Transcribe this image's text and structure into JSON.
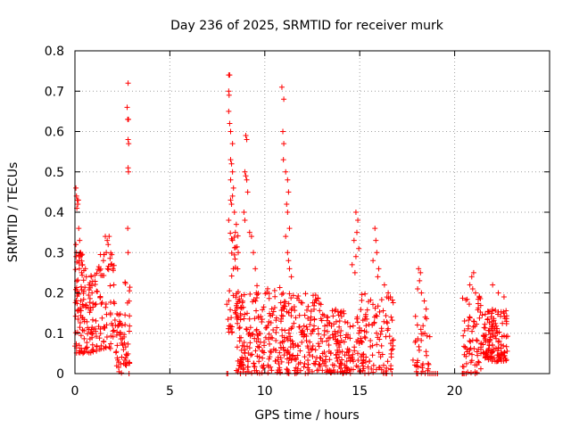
{
  "chart_data": {
    "type": "scatter",
    "title": "Day 236 of 2025, SRMTID for receiver murk",
    "xlabel": "GPS time / hours",
    "ylabel": "SRMTID / TECUs",
    "xlim": [
      0,
      25
    ],
    "ylim": [
      0,
      0.8
    ],
    "grid": true,
    "marker_color": "#ff0000",
    "marker": "plus",
    "x_ticks": [
      0,
      5,
      10,
      15,
      20
    ],
    "y_ticks": [
      0,
      0.1,
      0.2,
      0.3,
      0.4,
      0.5,
      0.6,
      0.7,
      0.8
    ],
    "x_tick_labels": [
      "0",
      "5",
      "10",
      "15",
      "20"
    ],
    "y_tick_labels": [
      "0",
      "0.1",
      "0.2",
      "0.3",
      "0.4",
      "0.5",
      "0.6",
      "0.7",
      "0.8"
    ],
    "clusters": [
      {
        "x_range": [
          0.0,
          0.5
        ],
        "y_range": [
          0.05,
          0.3
        ],
        "count": 70
      },
      {
        "x_range": [
          0.5,
          1.2
        ],
        "y_range": [
          0.05,
          0.25
        ],
        "count": 60
      },
      {
        "x_range": [
          1.2,
          2.1
        ],
        "y_range": [
          0.06,
          0.3
        ],
        "count": 60
      },
      {
        "x_range": [
          2.1,
          2.6
        ],
        "y_range": [
          0.0,
          0.15
        ],
        "count": 35
      },
      {
        "x_range": [
          2.6,
          2.9
        ],
        "y_range": [
          0.02,
          0.25
        ],
        "count": 25
      },
      {
        "x_range": [
          8.0,
          8.6
        ],
        "y_range": [
          0.1,
          0.35
        ],
        "count": 40
      },
      {
        "x_range": [
          8.5,
          9.5
        ],
        "y_range": [
          0.0,
          0.2
        ],
        "count": 90
      },
      {
        "x_range": [
          9.5,
          11.0
        ],
        "y_range": [
          0.0,
          0.22
        ],
        "count": 120
      },
      {
        "x_range": [
          11.0,
          13.0
        ],
        "y_range": [
          0.0,
          0.2
        ],
        "count": 160
      },
      {
        "x_range": [
          13.0,
          15.0
        ],
        "y_range": [
          0.0,
          0.16
        ],
        "count": 150
      },
      {
        "x_range": [
          15.0,
          16.8
        ],
        "y_range": [
          0.0,
          0.2
        ],
        "count": 110
      },
      {
        "x_range": [
          17.8,
          18.7
        ],
        "y_range": [
          0.0,
          0.15
        ],
        "count": 35
      },
      {
        "x_range": [
          20.4,
          21.5
        ],
        "y_range": [
          0.0,
          0.2
        ],
        "count": 70
      },
      {
        "x_range": [
          21.5,
          22.8
        ],
        "y_range": [
          0.03,
          0.16
        ],
        "count": 140
      }
    ],
    "points": [
      [
        0.05,
        0.46
      ],
      [
        0.08,
        0.44
      ],
      [
        0.12,
        0.43
      ],
      [
        0.15,
        0.42
      ],
      [
        0.1,
        0.41
      ],
      [
        0.18,
        0.43
      ],
      [
        0.2,
        0.36
      ],
      [
        0.25,
        0.33
      ],
      [
        0.3,
        0.3
      ],
      [
        0.22,
        0.28
      ],
      [
        0.35,
        0.25
      ],
      [
        0.4,
        0.27
      ],
      [
        0.05,
        0.32
      ],
      [
        0.08,
        0.3
      ],
      [
        0.55,
        0.26
      ],
      [
        0.6,
        0.24
      ],
      [
        0.75,
        0.22
      ],
      [
        0.9,
        0.2
      ],
      [
        1.6,
        0.34
      ],
      [
        1.7,
        0.33
      ],
      [
        1.75,
        0.32
      ],
      [
        1.8,
        0.34
      ],
      [
        1.5,
        0.28
      ],
      [
        1.65,
        0.3
      ],
      [
        1.9,
        0.27
      ],
      [
        2.0,
        0.26
      ],
      [
        2.05,
        0.22
      ],
      [
        2.3,
        0.12
      ],
      [
        2.4,
        0.1
      ],
      [
        2.8,
        0.72
      ],
      [
        2.75,
        0.66
      ],
      [
        2.78,
        0.63
      ],
      [
        2.82,
        0.63
      ],
      [
        2.8,
        0.58
      ],
      [
        2.83,
        0.57
      ],
      [
        2.8,
        0.51
      ],
      [
        2.82,
        0.5
      ],
      [
        2.78,
        0.36
      ],
      [
        2.8,
        0.3
      ],
      [
        8.1,
        0.74
      ],
      [
        8.15,
        0.74
      ],
      [
        8.1,
        0.7
      ],
      [
        8.12,
        0.69
      ],
      [
        8.1,
        0.65
      ],
      [
        8.15,
        0.62
      ],
      [
        8.2,
        0.6
      ],
      [
        8.3,
        0.57
      ],
      [
        8.2,
        0.53
      ],
      [
        8.25,
        0.52
      ],
      [
        8.3,
        0.5
      ],
      [
        8.2,
        0.48
      ],
      [
        8.35,
        0.46
      ],
      [
        8.3,
        0.44
      ],
      [
        8.2,
        0.43
      ],
      [
        8.25,
        0.42
      ],
      [
        8.4,
        0.4
      ],
      [
        8.1,
        0.38
      ],
      [
        8.5,
        0.37
      ],
      [
        8.45,
        0.35
      ],
      [
        8.3,
        0.33
      ],
      [
        8.6,
        0.3
      ],
      [
        9.0,
        0.59
      ],
      [
        9.05,
        0.58
      ],
      [
        8.95,
        0.5
      ],
      [
        9.0,
        0.49
      ],
      [
        9.05,
        0.48
      ],
      [
        9.1,
        0.45
      ],
      [
        8.9,
        0.4
      ],
      [
        8.95,
        0.38
      ],
      [
        9.2,
        0.35
      ],
      [
        9.3,
        0.34
      ],
      [
        9.4,
        0.3
      ],
      [
        9.5,
        0.26
      ],
      [
        10.9,
        0.71
      ],
      [
        11.0,
        0.68
      ],
      [
        10.95,
        0.6
      ],
      [
        11.0,
        0.57
      ],
      [
        10.98,
        0.53
      ],
      [
        11.1,
        0.5
      ],
      [
        11.2,
        0.48
      ],
      [
        11.25,
        0.45
      ],
      [
        11.15,
        0.42
      ],
      [
        11.2,
        0.4
      ],
      [
        11.3,
        0.36
      ],
      [
        11.1,
        0.34
      ],
      [
        11.2,
        0.3
      ],
      [
        11.25,
        0.28
      ],
      [
        11.3,
        0.26
      ],
      [
        11.4,
        0.24
      ],
      [
        14.8,
        0.4
      ],
      [
        14.9,
        0.38
      ],
      [
        14.85,
        0.35
      ],
      [
        14.7,
        0.33
      ],
      [
        14.95,
        0.31
      ],
      [
        14.8,
        0.29
      ],
      [
        14.6,
        0.27
      ],
      [
        14.75,
        0.25
      ],
      [
        15.8,
        0.36
      ],
      [
        15.85,
        0.33
      ],
      [
        15.9,
        0.3
      ],
      [
        15.7,
        0.28
      ],
      [
        16.0,
        0.26
      ],
      [
        15.95,
        0.24
      ],
      [
        16.3,
        0.22
      ],
      [
        16.5,
        0.2
      ],
      [
        18.1,
        0.26
      ],
      [
        18.2,
        0.25
      ],
      [
        18.15,
        0.23
      ],
      [
        18.05,
        0.21
      ],
      [
        18.25,
        0.2
      ],
      [
        18.4,
        0.18
      ],
      [
        18.5,
        0.16
      ],
      [
        18.45,
        0.14
      ],
      [
        20.9,
        0.24
      ],
      [
        21.0,
        0.25
      ],
      [
        20.8,
        0.22
      ],
      [
        20.95,
        0.21
      ],
      [
        21.1,
        0.2
      ],
      [
        22.0,
        0.22
      ],
      [
        22.3,
        0.2
      ],
      [
        22.6,
        0.19
      ],
      [
        2.85,
        0.0
      ],
      [
        8.0,
        0.0
      ],
      [
        8.05,
        0.0
      ],
      [
        16.7,
        0.0
      ],
      [
        18.0,
        0.0
      ],
      [
        18.05,
        0.0
      ],
      [
        18.6,
        0.0
      ],
      [
        18.7,
        0.0
      ],
      [
        18.8,
        0.0
      ],
      [
        18.9,
        0.0
      ],
      [
        19.0,
        0.0
      ],
      [
        19.1,
        0.0
      ],
      [
        20.4,
        0.0
      ],
      [
        20.5,
        0.0
      ],
      [
        20.6,
        0.0
      ]
    ]
  }
}
